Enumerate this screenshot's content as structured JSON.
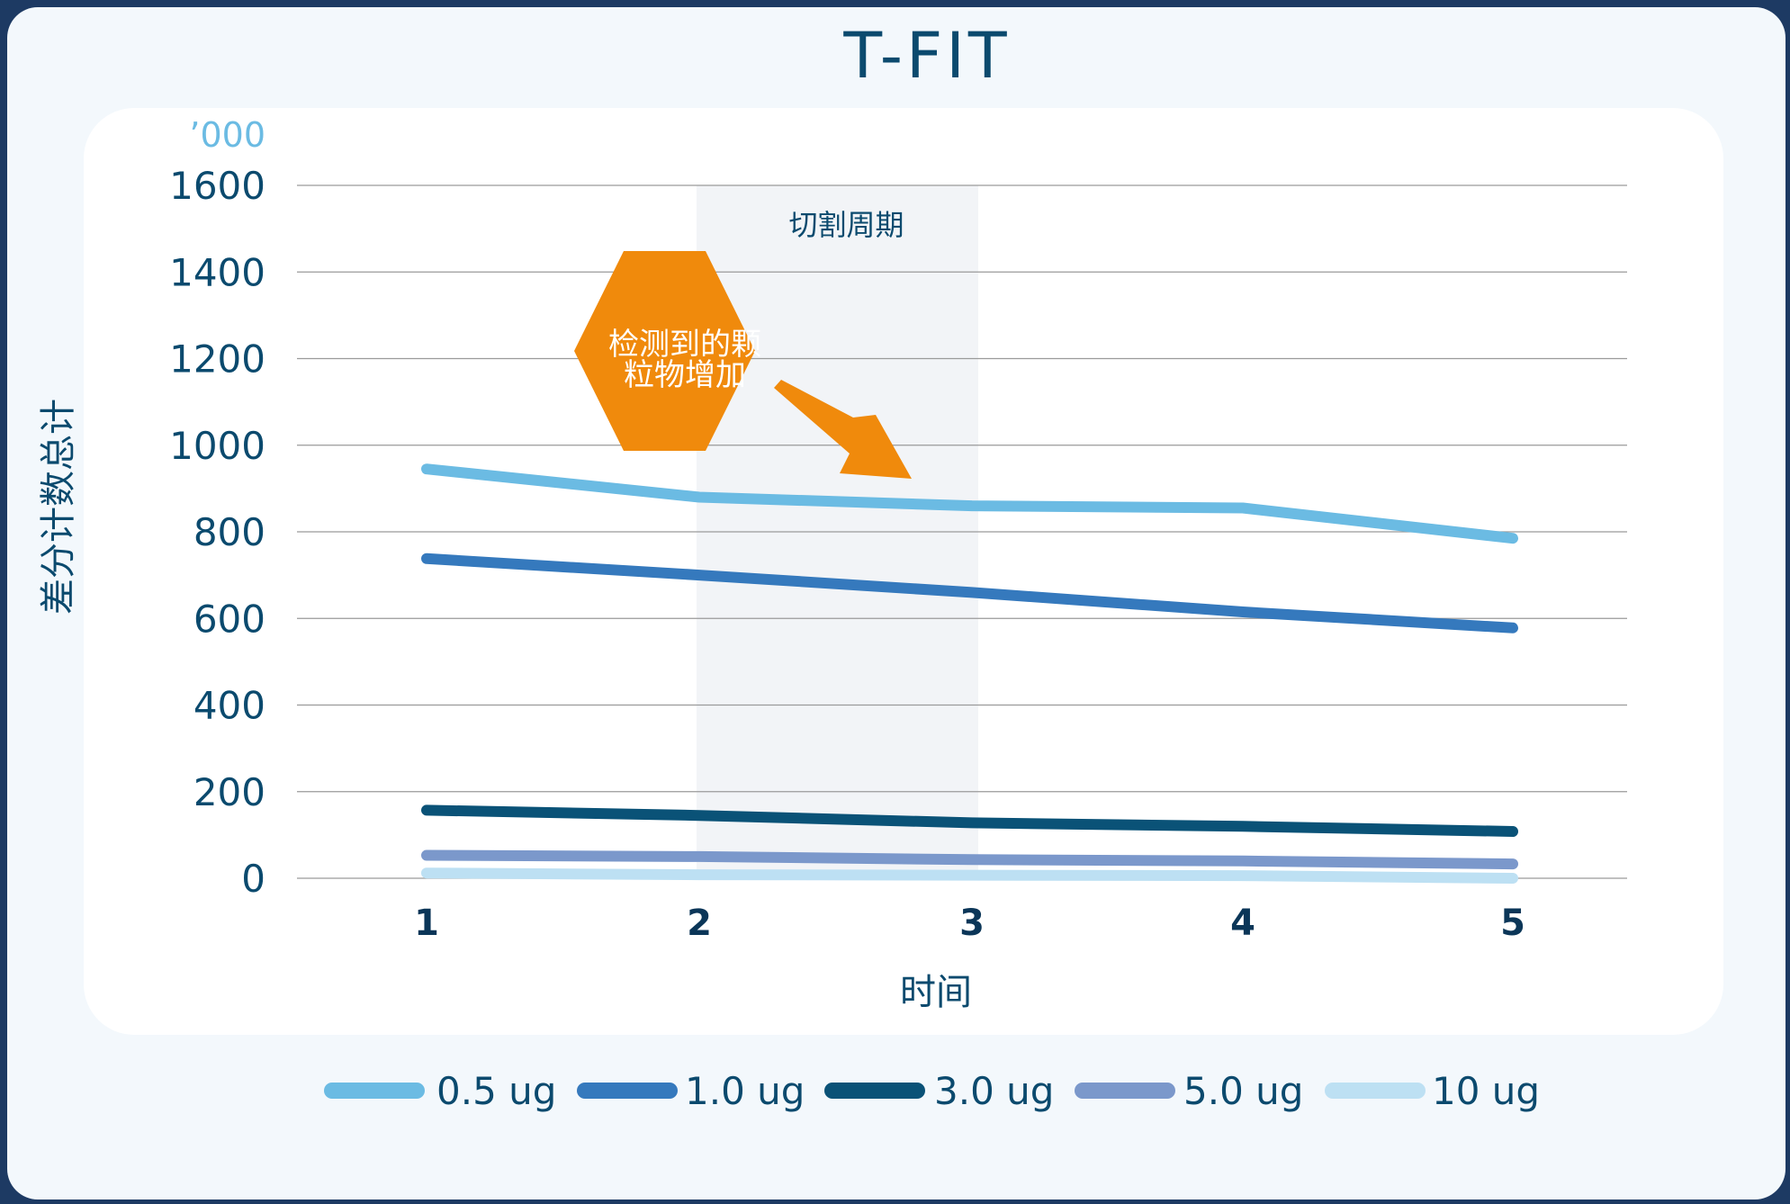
{
  "chart_data": {
    "type": "line",
    "title": "T-FIT",
    "xlabel": "时间",
    "ylabel": "差分计数总计",
    "y_unit": "’000",
    "categories": [
      "1",
      "2",
      "3",
      "4",
      "5"
    ],
    "ylim": [
      0,
      1600
    ],
    "yticks": [
      "0",
      "200",
      "400",
      "600",
      "800",
      "1000",
      "1200",
      "1400",
      "1600"
    ],
    "grid": true,
    "legend_position": "bottom",
    "series": [
      {
        "name": "0.5 ug",
        "color": "#6bbbe3",
        "values": [
          945,
          880,
          860,
          855,
          785
        ]
      },
      {
        "name": "1.0 ug",
        "color": "#3579bd",
        "values": [
          738,
          700,
          660,
          615,
          578
        ]
      },
      {
        "name": "3.0 ug",
        "color": "#0a5277",
        "values": [
          157,
          145,
          128,
          120,
          108
        ]
      },
      {
        "name": "5.0 ug",
        "color": "#7b98cb",
        "values": [
          53,
          50,
          43,
          40,
          33
        ]
      },
      {
        "name": "10 ug",
        "color": "#bde0f3",
        "values": [
          12,
          8,
          7,
          6,
          0
        ]
      }
    ],
    "shaded_band": {
      "from_category": "2",
      "to_category": "3",
      "label": "切割周期"
    },
    "annotation": {
      "text": [
        "检测到的颗",
        "粒物增加"
      ],
      "color": "#f08a0c"
    }
  }
}
